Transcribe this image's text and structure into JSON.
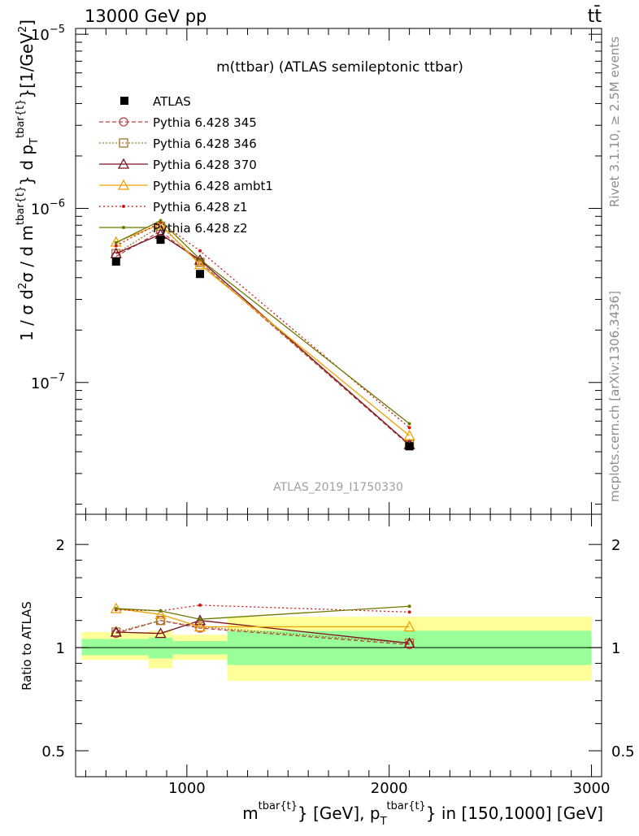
{
  "header": {
    "left": "13000 GeV pp",
    "right": "tt̄"
  },
  "side_text": {
    "rivet": "Rivet 3.1.10, ≥ 2.5M events",
    "mcplots": "mcplots.cern.ch [arXiv:1306.3436]"
  },
  "colors": {
    "atlas": "#000000",
    "p345": "#c0404a",
    "p346": "#a07828",
    "p370": "#7a1020",
    "ambt1": "#f0a000",
    "z1": "#d01818",
    "z2": "#6e7800",
    "band_inner": "#99ff99",
    "band_outer": "#ffff99"
  },
  "chart_data": [
    {
      "type": "line",
      "title": "m(ttbar) (ATLAS semileptonic ttbar)",
      "watermark": "ATLAS_2019_I1750330",
      "ylabel": {
        "prefix": "1 / σ d",
        "sup2": "2",
        "mid": "σ / d m",
        "supA": "tbar{t}",
        "mid2": "} d p",
        "subT": "T",
        "supB": "tbar{t}",
        "suffix": "}[1/GeV",
        "sup3": "2",
        "end": "]"
      },
      "y_scale": "log",
      "ylim": [
        1.75e-08,
        1.08e-05
      ],
      "xlim": [
        450,
        3050
      ],
      "yticks": [
        {
          "v": 1e-05,
          "base": "10",
          "exp": "−5"
        },
        {
          "v": 1e-06,
          "base": "10",
          "exp": "−6"
        },
        {
          "v": 1e-07,
          "base": "10",
          "exp": "−7"
        }
      ],
      "legend_position": "top-left",
      "legend": [
        {
          "key": "atlas",
          "label": "ATLAS"
        },
        {
          "key": "p345",
          "label": "Pythia 6.428 345"
        },
        {
          "key": "p346",
          "label": "Pythia 6.428 346"
        },
        {
          "key": "p370",
          "label": "Pythia 6.428 370"
        },
        {
          "key": "ambt1",
          "label": "Pythia 6.428 ambt1"
        },
        {
          "key": "z1",
          "label": "Pythia 6.428 z1"
        },
        {
          "key": "z2",
          "label": "Pythia 6.428 z2"
        }
      ],
      "data": {
        "x": [
          650,
          870,
          1065,
          2100
        ],
        "y": [
          4.95e-07,
          6.6e-07,
          4.2e-07,
          4.3e-08
        ]
      },
      "series": [
        {
          "key": "p345",
          "name": "Pythia 6.428 345",
          "marker": "circle",
          "dash": "5,3",
          "y": [
            5.3e-07,
            7.4e-07,
            4.9e-07,
            4.35e-08
          ]
        },
        {
          "key": "p346",
          "name": "Pythia 6.428 346",
          "marker": "square",
          "dash": "2,2",
          "y": [
            5.5e-07,
            7.9e-07,
            4.9e-07,
            4.4e-08
          ]
        },
        {
          "key": "p370",
          "name": "Pythia 6.428 370",
          "marker": "triangle",
          "dash": "",
          "y": [
            5.5e-07,
            7.1e-07,
            5.05e-07,
            4.4e-08
          ]
        },
        {
          "key": "ambt1",
          "name": "Pythia 6.428 ambt1",
          "marker": "triangle",
          "dash": "",
          "y": [
            6.4e-07,
            8.1e-07,
            4.75e-07,
            4.95e-08
          ]
        },
        {
          "key": "z1",
          "name": "Pythia 6.428 z1",
          "marker": "dot",
          "dash": "2,3",
          "y": [
            6.1e-07,
            8.3e-07,
            5.7e-07,
            5.5e-08
          ]
        },
        {
          "key": "z2",
          "name": "Pythia 6.428 z2",
          "marker": "dot",
          "dash": "",
          "y": [
            6.35e-07,
            8.5e-07,
            5.1e-07,
            5.8e-08
          ]
        }
      ]
    },
    {
      "type": "line",
      "ylabel": "Ratio to ATLAS",
      "y_scale": "log",
      "ylim": [
        0.42,
        2.45
      ],
      "xlim": [
        450,
        3050
      ],
      "yticks": [
        {
          "v": 0.5,
          "label": "0.5"
        },
        {
          "v": 1,
          "label": "1"
        },
        {
          "v": 2,
          "label": "2"
        }
      ],
      "xticks": [
        {
          "v": 1000,
          "label": "1000"
        },
        {
          "v": 2000,
          "label": "2000"
        },
        {
          "v": 3000,
          "label": "3000"
        }
      ],
      "xlabel": {
        "pre": "m",
        "supA": "tbar{t}",
        "mid": "} [GeV], p",
        "subT": "T",
        "supB": "tbar{t}",
        "post": "} in [150,1000] [GeV]"
      },
      "bins": [
        {
          "x": [
            480,
            810
          ],
          "inner": [
            0.95,
            1.06
          ],
          "outer": [
            0.92,
            1.11
          ]
        },
        {
          "x": [
            810,
            930
          ],
          "inner": [
            0.93,
            1.07
          ],
          "outer": [
            0.87,
            1.12
          ]
        },
        {
          "x": [
            930,
            1200
          ],
          "inner": [
            0.955,
            1.045
          ],
          "outer": [
            0.92,
            1.09
          ]
        },
        {
          "x": [
            1200,
            3000
          ],
          "inner": [
            0.89,
            1.12
          ],
          "outer": [
            0.8,
            1.23
          ]
        }
      ],
      "series": [
        {
          "key": "p345",
          "x": [
            650,
            870,
            1065,
            2100
          ],
          "y": [
            1.1,
            1.2,
            1.14,
            1.02
          ]
        },
        {
          "key": "p346",
          "x": [
            650,
            870,
            1065,
            2100
          ],
          "y": [
            1.11,
            1.2,
            1.15,
            1.03
          ]
        },
        {
          "key": "p370",
          "x": [
            650,
            870,
            1065,
            2100
          ],
          "y": [
            1.11,
            1.1,
            1.2,
            1.03
          ]
        },
        {
          "key": "ambt1",
          "x": [
            650,
            870,
            1065,
            2100
          ],
          "y": [
            1.3,
            1.25,
            1.15,
            1.15
          ]
        },
        {
          "key": "z1",
          "x": [
            650,
            870,
            1065,
            2100
          ],
          "y": [
            1.29,
            1.28,
            1.33,
            1.27
          ]
        },
        {
          "key": "z2",
          "x": [
            650,
            870,
            1065,
            2100
          ],
          "y": [
            1.3,
            1.28,
            1.21,
            1.32
          ]
        }
      ]
    }
  ]
}
